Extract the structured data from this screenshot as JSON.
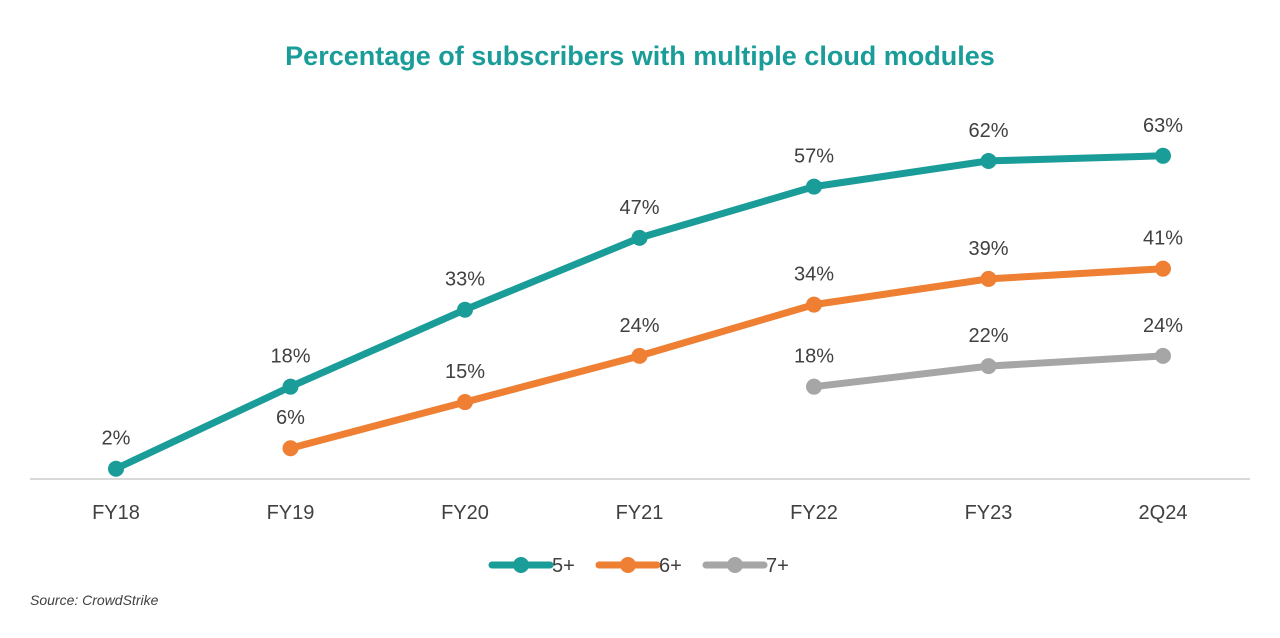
{
  "chart_data": {
    "type": "line",
    "title": "Percentage of subscribers with multiple cloud modules",
    "categories": [
      "FY18",
      "FY19",
      "FY20",
      "FY21",
      "FY22",
      "FY23",
      "2Q24"
    ],
    "ylim": [
      0,
      75
    ],
    "grid": false,
    "legend_position": "bottom",
    "series": [
      {
        "name": "5+",
        "color": "#1a9c99",
        "values": [
          2,
          18,
          33,
          47,
          57,
          62,
          63
        ],
        "labels": [
          "2%",
          "18%",
          "33%",
          "47%",
          "57%",
          "62%",
          "63%"
        ]
      },
      {
        "name": "6+",
        "color": "#ee7f33",
        "values": [
          null,
          6,
          15,
          24,
          34,
          39,
          41
        ],
        "labels": [
          null,
          "6%",
          "15%",
          "24%",
          "34%",
          "39%",
          "41%"
        ]
      },
      {
        "name": "7+",
        "color": "#a6a6a6",
        "values": [
          null,
          null,
          null,
          null,
          18,
          22,
          24
        ],
        "labels": [
          null,
          null,
          null,
          null,
          "18%",
          "22%",
          "24%"
        ]
      }
    ]
  },
  "colors": {
    "title": "#1a9c99",
    "axis": "#d9d9d9"
  },
  "source": "Source: CrowdStrike"
}
